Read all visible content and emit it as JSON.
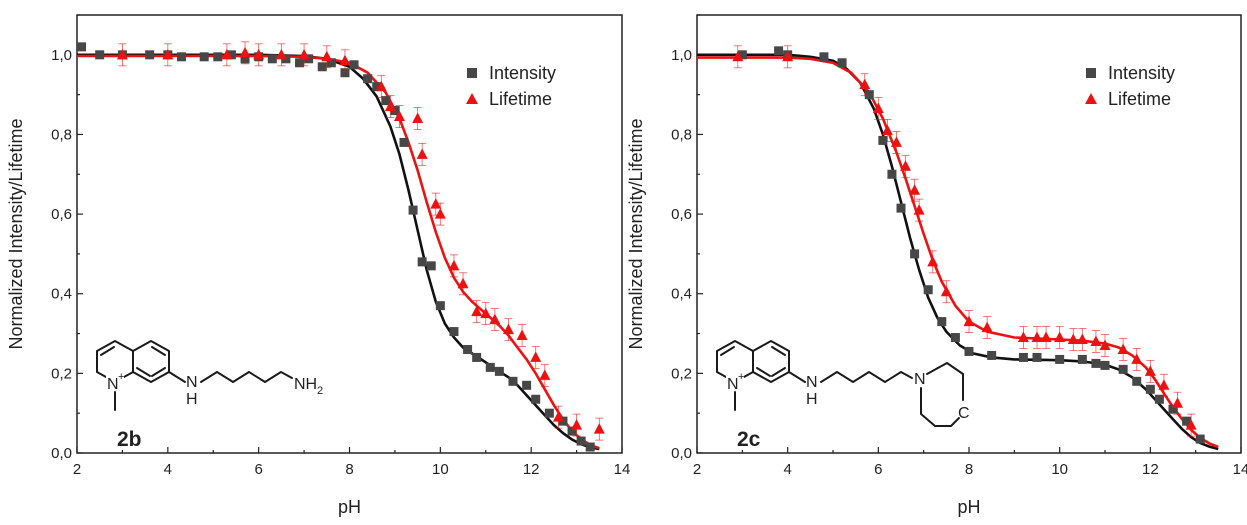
{
  "chart_data": [
    {
      "type": "scatter",
      "panel": "left",
      "xlabel": "pH",
      "ylabel": "Normalized Intensity/Lifetime",
      "xlim": [
        2,
        14
      ],
      "ylim": [
        0,
        1.1
      ],
      "xticks": [
        "2",
        "4",
        "6",
        "8",
        "10",
        "12",
        "14"
      ],
      "yticks": [
        "0,0",
        "0,2",
        "0,4",
        "0,6",
        "0,8",
        "1,0"
      ],
      "legend_position": "top-right",
      "compound_label": "2b",
      "molecule_labels": {
        "nitrogen_plus": "N+",
        "amine_h": "H",
        "amine_n": "N",
        "terminal_group": "NH2"
      },
      "series": [
        {
          "name": "Intensity",
          "marker": "square",
          "color": "#474747",
          "x": [
            2.1,
            2.5,
            3.0,
            3.6,
            4.0,
            4.3,
            4.8,
            5.1,
            5.4,
            5.7,
            6.0,
            6.3,
            6.6,
            6.9,
            7.1,
            7.4,
            7.6,
            7.9,
            8.1,
            8.4,
            8.6,
            8.8,
            9.0,
            9.2,
            9.4,
            9.6,
            9.8,
            10.0,
            10.3,
            10.6,
            10.8,
            11.1,
            11.3,
            11.6,
            11.9,
            12.1,
            12.4,
            12.7,
            12.9,
            13.1,
            13.3
          ],
          "y": [
            1.02,
            1.0,
            1.0,
            1.0,
            1.0,
            0.995,
            0.995,
            0.995,
            1.0,
            0.99,
            0.995,
            0.99,
            0.99,
            0.98,
            0.99,
            0.97,
            0.98,
            0.955,
            0.975,
            0.94,
            0.92,
            0.885,
            0.86,
            0.78,
            0.61,
            0.48,
            0.47,
            0.37,
            0.305,
            0.26,
            0.24,
            0.215,
            0.205,
            0.18,
            0.17,
            0.135,
            0.1,
            0.08,
            0.055,
            0.03,
            0.015
          ]
        },
        {
          "name": "Lifetime",
          "marker": "triangle",
          "color": "#ee1111",
          "x": [
            3.0,
            4.0,
            5.3,
            5.7,
            6.0,
            6.5,
            7.0,
            7.5,
            7.9,
            8.7,
            8.9,
            9.1,
            9.5,
            9.6,
            9.9,
            10.0,
            10.3,
            10.5,
            10.8,
            11.0,
            11.2,
            11.5,
            11.8,
            12.1,
            12.3,
            12.6,
            13.0,
            13.5
          ],
          "y": [
            1.0,
            1.0,
            1.0,
            1.005,
            1.0,
            1.0,
            1.0,
            0.995,
            0.985,
            0.92,
            0.87,
            0.845,
            0.84,
            0.75,
            0.625,
            0.6,
            0.47,
            0.425,
            0.355,
            0.35,
            0.335,
            0.31,
            0.295,
            0.24,
            0.195,
            0.09,
            0.07,
            0.06
          ]
        }
      ],
      "fits": [
        {
          "series": "Intensity",
          "color": "#111111",
          "x": [
            2,
            4,
            6,
            7,
            7.5,
            8,
            8.3,
            8.6,
            8.9,
            9.1,
            9.3,
            9.5,
            9.7,
            9.9,
            10.1,
            10.3,
            10.5,
            10.7,
            10.9,
            11.1,
            11.3,
            11.5,
            11.7,
            11.9,
            12.1,
            12.3,
            12.5,
            12.7,
            12.9,
            13.1,
            13.3,
            13.5
          ],
          "y": [
            1.0,
            1.0,
            1.0,
            0.997,
            0.99,
            0.97,
            0.94,
            0.895,
            0.82,
            0.75,
            0.66,
            0.56,
            0.46,
            0.38,
            0.325,
            0.29,
            0.265,
            0.25,
            0.235,
            0.22,
            0.205,
            0.19,
            0.17,
            0.145,
            0.12,
            0.095,
            0.07,
            0.05,
            0.034,
            0.022,
            0.014,
            0.01
          ]
        },
        {
          "series": "Lifetime",
          "color": "#ee1111",
          "x": [
            2,
            4,
            6,
            7,
            7.5,
            8,
            8.4,
            8.8,
            9.1,
            9.3,
            9.5,
            9.7,
            9.9,
            10.1,
            10.3,
            10.5,
            10.7,
            10.9,
            11.1,
            11.3,
            11.5,
            11.7,
            11.9,
            12.1,
            12.3,
            12.5,
            12.7,
            12.9,
            13.1,
            13.3,
            13.5
          ],
          "y": [
            0.997,
            0.997,
            0.997,
            0.995,
            0.99,
            0.98,
            0.955,
            0.905,
            0.84,
            0.78,
            0.71,
            0.63,
            0.555,
            0.49,
            0.44,
            0.405,
            0.38,
            0.36,
            0.34,
            0.32,
            0.295,
            0.265,
            0.235,
            0.2,
            0.16,
            0.12,
            0.085,
            0.055,
            0.035,
            0.02,
            0.012
          ]
        }
      ]
    },
    {
      "type": "scatter",
      "panel": "right",
      "xlabel": "pH",
      "ylabel": "Normalized Intensity/Lifetime",
      "xlim": [
        2,
        14
      ],
      "ylim": [
        0,
        1.1
      ],
      "xticks": [
        "2",
        "4",
        "6",
        "8",
        "10",
        "12",
        "14"
      ],
      "yticks": [
        "0,0",
        "0,2",
        "0,4",
        "0,6",
        "0,8",
        "1,0"
      ],
      "legend_position": "top-right",
      "compound_label": "2c",
      "molecule_labels": {
        "nitrogen_plus": "N+",
        "amine_h": "H",
        "amine_n": "N",
        "ring_n": "N",
        "ring_atom": "C"
      },
      "series": [
        {
          "name": "Intensity",
          "marker": "square",
          "color": "#474747",
          "x": [
            3.0,
            3.8,
            4.0,
            4.8,
            5.2,
            5.8,
            6.1,
            6.3,
            6.5,
            6.8,
            7.1,
            7.4,
            7.7,
            8.0,
            8.5,
            9.2,
            9.5,
            10.0,
            10.5,
            10.8,
            11.0,
            11.4,
            11.7,
            12.0,
            12.2,
            12.5,
            12.8,
            13.1
          ],
          "y": [
            1.0,
            1.01,
            1.0,
            0.995,
            0.98,
            0.9,
            0.785,
            0.7,
            0.615,
            0.5,
            0.41,
            0.33,
            0.29,
            0.255,
            0.245,
            0.24,
            0.24,
            0.235,
            0.235,
            0.225,
            0.22,
            0.21,
            0.18,
            0.16,
            0.135,
            0.11,
            0.08,
            0.035
          ]
        },
        {
          "name": "Lifetime",
          "marker": "triangle",
          "color": "#ee1111",
          "x": [
            2.9,
            4.0,
            5.7,
            6.0,
            6.2,
            6.4,
            6.6,
            6.8,
            6.9,
            7.2,
            7.5,
            8.0,
            8.4,
            9.2,
            9.5,
            9.7,
            10.0,
            10.3,
            10.5,
            10.8,
            11.0,
            11.4,
            11.7,
            12.0,
            12.3,
            12.6,
            12.9
          ],
          "y": [
            0.995,
            0.995,
            0.925,
            0.865,
            0.81,
            0.78,
            0.72,
            0.66,
            0.61,
            0.48,
            0.405,
            0.33,
            0.315,
            0.29,
            0.29,
            0.29,
            0.29,
            0.285,
            0.285,
            0.28,
            0.27,
            0.26,
            0.235,
            0.205,
            0.17,
            0.125,
            0.07
          ]
        }
      ],
      "fits": [
        {
          "series": "Intensity",
          "color": "#111111",
          "x": [
            2,
            4,
            4.5,
            5,
            5.3,
            5.6,
            5.9,
            6.1,
            6.3,
            6.5,
            6.7,
            6.9,
            7.1,
            7.3,
            7.5,
            7.8,
            8.1,
            8.5,
            9,
            10,
            10.5,
            11,
            11.3,
            11.6,
            11.9,
            12.1,
            12.3,
            12.5,
            12.7,
            12.9,
            13.1,
            13.3,
            13.5
          ],
          "y": [
            1.0,
            1.0,
            0.995,
            0.985,
            0.965,
            0.93,
            0.865,
            0.8,
            0.72,
            0.63,
            0.54,
            0.46,
            0.39,
            0.34,
            0.305,
            0.27,
            0.25,
            0.24,
            0.235,
            0.233,
            0.23,
            0.222,
            0.21,
            0.19,
            0.16,
            0.135,
            0.11,
            0.085,
            0.06,
            0.04,
            0.025,
            0.016,
            0.01
          ]
        },
        {
          "series": "Lifetime",
          "color": "#ee1111",
          "x": [
            2,
            4,
            4.5,
            5,
            5.4,
            5.8,
            6.1,
            6.4,
            6.6,
            6.8,
            7.0,
            7.2,
            7.4,
            7.7,
            8.0,
            8.4,
            9,
            10,
            10.5,
            11,
            11.3,
            11.6,
            11.9,
            12.1,
            12.3,
            12.5,
            12.7,
            12.9,
            13.1,
            13.3,
            13.5
          ],
          "y": [
            0.993,
            0.993,
            0.99,
            0.98,
            0.955,
            0.905,
            0.84,
            0.755,
            0.69,
            0.62,
            0.55,
            0.485,
            0.43,
            0.37,
            0.33,
            0.305,
            0.29,
            0.285,
            0.282,
            0.275,
            0.265,
            0.245,
            0.215,
            0.185,
            0.15,
            0.115,
            0.085,
            0.058,
            0.038,
            0.024,
            0.015
          ]
        }
      ]
    }
  ]
}
